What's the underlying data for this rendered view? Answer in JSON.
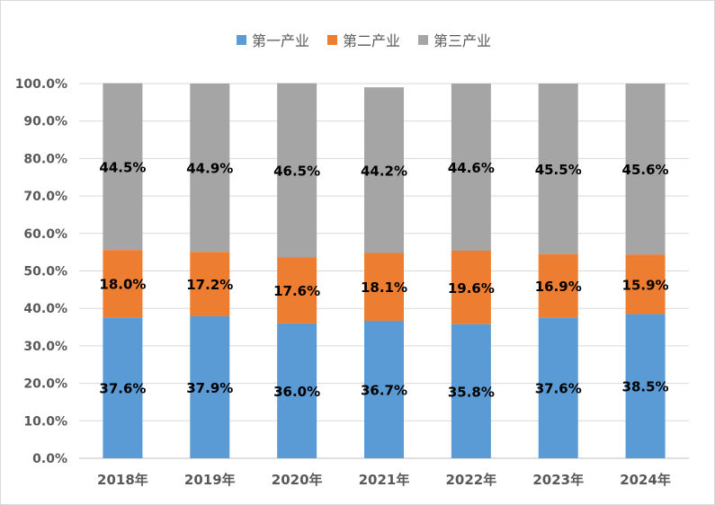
{
  "chart_data": {
    "type": "bar",
    "stacked": true,
    "categories": [
      "2018年",
      "2019年",
      "2020年",
      "2021年",
      "2022年",
      "2023年",
      "2024年"
    ],
    "series": [
      {
        "name": "第一产业",
        "color": "#5b9bd5",
        "values": [
          37.6,
          37.9,
          36.0,
          36.7,
          35.8,
          37.6,
          38.5
        ],
        "labels": [
          "37.6%",
          "37.9%",
          "36.0%",
          "36.7%",
          "35.8%",
          "37.6%",
          "38.5%"
        ]
      },
      {
        "name": "第二产业",
        "color": "#ed7d31",
        "values": [
          18.0,
          17.2,
          17.6,
          18.1,
          19.6,
          16.9,
          15.9
        ],
        "labels": [
          "18.0%",
          "17.2%",
          "17.6%",
          "18.1%",
          "19.6%",
          "16.9%",
          "15.9%"
        ]
      },
      {
        "name": "第三产业",
        "color": "#a5a5a5",
        "values": [
          44.5,
          44.9,
          46.5,
          44.2,
          44.6,
          45.5,
          45.6
        ],
        "labels": [
          "44.5%",
          "44.9%",
          "46.5%",
          "44.2%",
          "44.6%",
          "45.5%",
          "45.6%"
        ]
      }
    ],
    "ylim": [
      0,
      100
    ],
    "yticks": [
      0,
      10,
      20,
      30,
      40,
      50,
      60,
      70,
      80,
      90,
      100
    ],
    "ytick_labels": [
      "0.0%",
      "10.0%",
      "20.0%",
      "30.0%",
      "40.0%",
      "50.0%",
      "60.0%",
      "70.0%",
      "80.0%",
      "90.0%",
      "100.0%"
    ],
    "grid": true,
    "legend_position": "top"
  }
}
